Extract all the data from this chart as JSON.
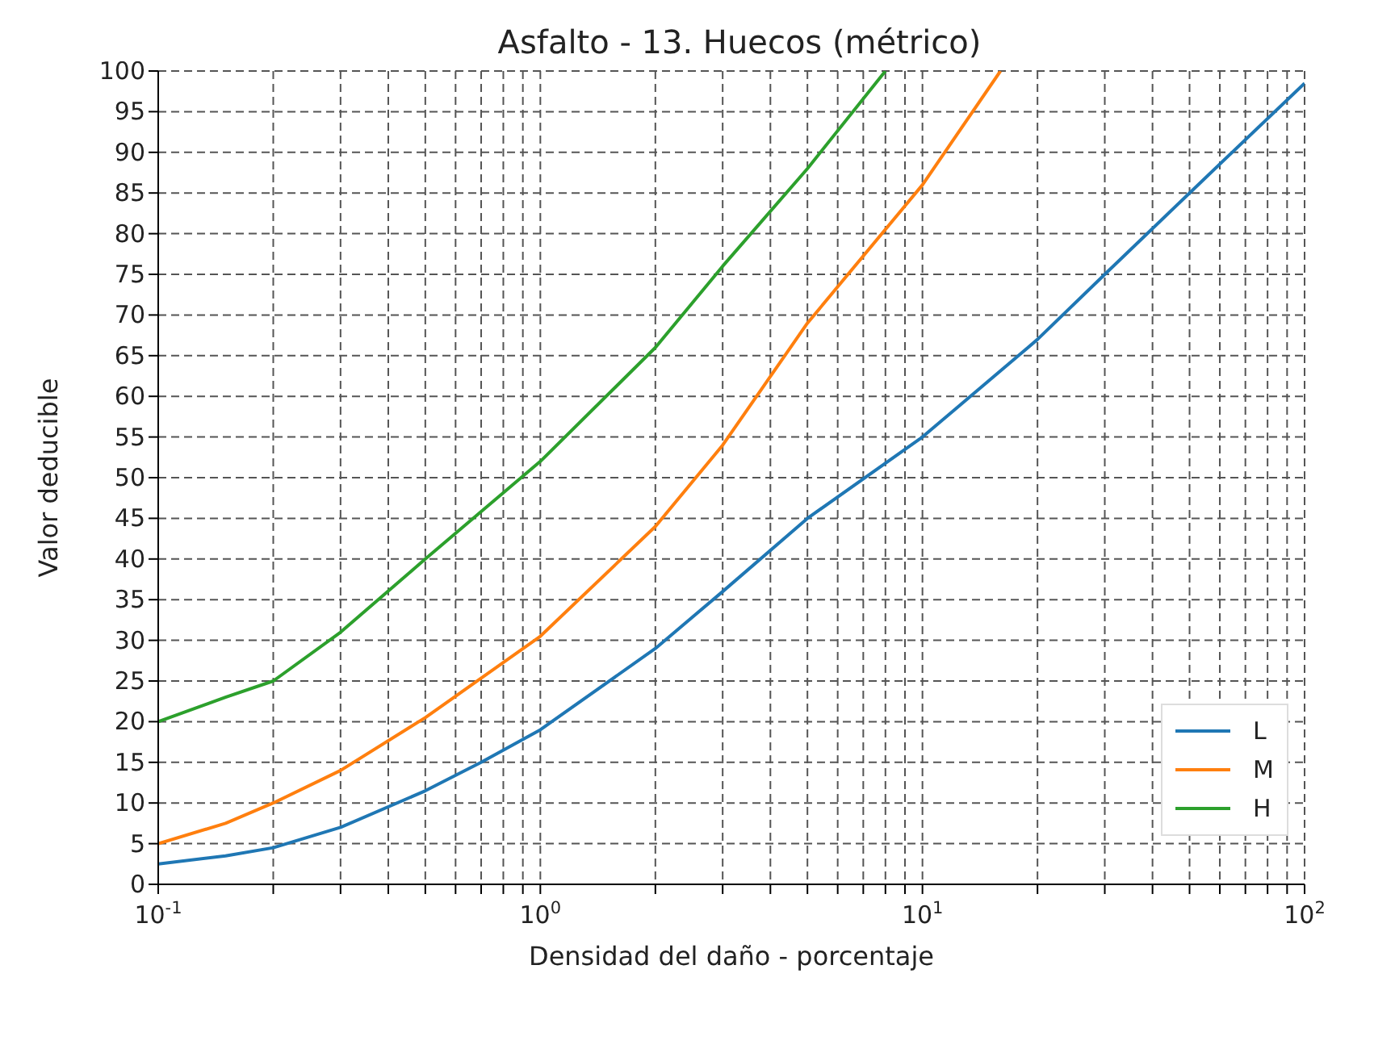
{
  "chart_data": {
    "type": "line",
    "title": "Asfalto - 13. Huecos (métrico)",
    "xlabel": "Densidad del daño - porcentaje",
    "ylabel": "Valor deducible",
    "log": "x",
    "xlim": [
      0.1,
      100
    ],
    "ylim": [
      0,
      100
    ],
    "xticks": [
      {
        "value": 0.1,
        "label": "10$^{-1}$"
      },
      {
        "value": 0.2,
        "label": null
      },
      {
        "value": 0.3,
        "label": null
      },
      {
        "value": 0.4,
        "label": null
      },
      {
        "value": 0.5,
        "label": null
      },
      {
        "value": 0.6,
        "label": null
      },
      {
        "value": 0.7,
        "label": null
      },
      {
        "value": 0.8,
        "label": null
      },
      {
        "value": 0.9,
        "label": null
      },
      {
        "value": 1,
        "label": "10$^{0}$"
      },
      {
        "value": 2,
        "label": null
      },
      {
        "value": 3,
        "label": null
      },
      {
        "value": 4,
        "label": null
      },
      {
        "value": 5,
        "label": null
      },
      {
        "value": 6,
        "label": null
      },
      {
        "value": 7,
        "label": null
      },
      {
        "value": 8,
        "label": null
      },
      {
        "value": 9,
        "label": null
      },
      {
        "value": 10,
        "label": "10$^{1}$"
      },
      {
        "value": 20,
        "label": null
      },
      {
        "value": 30,
        "label": null
      },
      {
        "value": 40,
        "label": null
      },
      {
        "value": 50,
        "label": null
      },
      {
        "value": 60,
        "label": null
      },
      {
        "value": 70,
        "label": null
      },
      {
        "value": 80,
        "label": null
      },
      {
        "value": 90,
        "label": null
      },
      {
        "value": 100,
        "label": "10$^{2}$"
      }
    ],
    "yticks": [
      0,
      5,
      10,
      15,
      20,
      25,
      30,
      35,
      40,
      45,
      50,
      55,
      60,
      65,
      70,
      75,
      80,
      85,
      90,
      95,
      100
    ],
    "grid": true,
    "legend": "bottom right",
    "line_style": "solid",
    "marker": "none",
    "series": [
      {
        "name": "L",
        "color": "#1f77b4",
        "x": [
          0.1,
          0.15,
          0.2,
          0.3,
          0.5,
          0.7,
          1,
          2,
          3,
          5,
          10,
          20,
          30,
          50,
          100
        ],
        "values": [
          2.5,
          3.5,
          4.5,
          7,
          11.5,
          15,
          19,
          29,
          36,
          45,
          55,
          67,
          75,
          85,
          98.5
        ]
      },
      {
        "name": "M",
        "color": "#ff7f0e",
        "x": [
          0.1,
          0.15,
          0.2,
          0.3,
          0.5,
          1,
          2,
          3,
          5,
          10,
          16
        ],
        "values": [
          5,
          7.5,
          10,
          14,
          20.5,
          30.5,
          44,
          54,
          69,
          86,
          100
        ]
      },
      {
        "name": "H",
        "color": "#2ca02c",
        "x": [
          0.1,
          0.15,
          0.2,
          0.3,
          0.5,
          1,
          2,
          3,
          5,
          8
        ],
        "values": [
          20,
          23,
          25,
          31,
          40,
          52,
          66,
          76,
          88,
          100
        ]
      }
    ]
  }
}
